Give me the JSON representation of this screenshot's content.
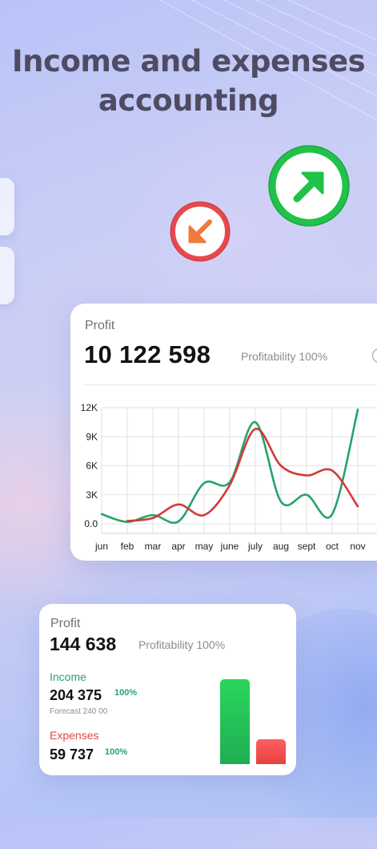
{
  "headline": {
    "line1": "Income and expenses",
    "line2": "accounting"
  },
  "colors": {
    "income": "#27a36a",
    "expense": "#e04848",
    "text": "#121212",
    "muted": "#8c8c94"
  },
  "icons": {
    "income_badge": "arrow-up-right-icon",
    "expense_badge": "arrow-down-left-icon"
  },
  "profit_card": {
    "label": "Profit",
    "value": "10 122 598",
    "profitability": "Profitability 100%",
    "info_icon": "info-icon"
  },
  "chart_data": {
    "type": "line",
    "categories": [
      "jun",
      "feb",
      "mar",
      "apr",
      "may",
      "june",
      "july",
      "aug",
      "sept",
      "oct",
      "nov"
    ],
    "y_ticks": [
      "12K",
      "9K",
      "6K",
      "3K",
      "0.0"
    ],
    "ylim": [
      0,
      12000
    ],
    "grid": true,
    "series": [
      {
        "color": "#27a36a",
        "values": [
          1000,
          200,
          900,
          250,
          4200,
          4300,
          10500,
          2300,
          3000,
          1000,
          11800
        ]
      },
      {
        "color": "#d23a3a",
        "values": [
          null,
          300,
          600,
          2000,
          900,
          4000,
          9800,
          6000,
          5000,
          5500,
          1800
        ]
      }
    ]
  },
  "summary_card": {
    "label": "Profit",
    "value": "144 638",
    "profitability": "Profitability 100%",
    "income": {
      "label": "Income",
      "value": "204 375",
      "pct": "100%",
      "forecast": "Forecast 240 00"
    },
    "expenses": {
      "label": "Expenses",
      "value": "59 737",
      "pct": "100%"
    },
    "bars": {
      "income": 204375,
      "expenses": 59737
    }
  }
}
